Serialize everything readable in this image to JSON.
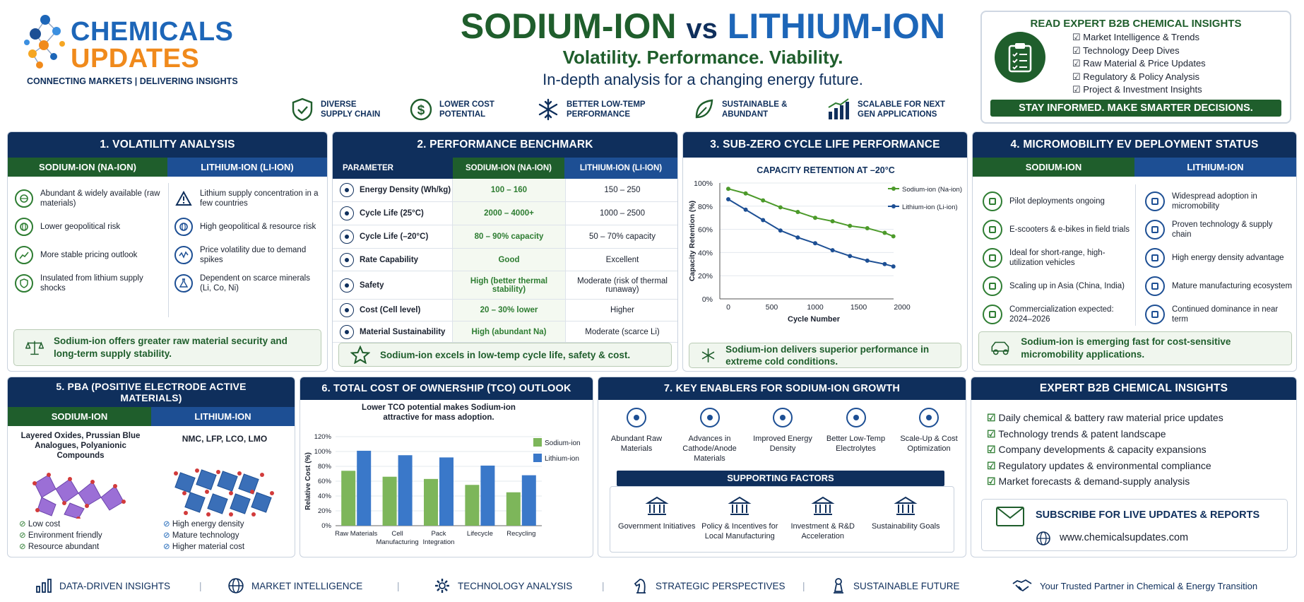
{
  "logo": {
    "line1": "CHEMICALS",
    "line2": "UPDATES",
    "tagline": "CONNECTING MARKETS | DELIVERING INSIGHTS"
  },
  "header": {
    "title_a": "SODIUM-ION",
    "title_vs": "vs",
    "title_b": "LITHIUM-ION",
    "subtitle": "Volatility. Performance. Viability.",
    "subtitle2": "In-depth analysis for a changing energy future.",
    "features": [
      {
        "icon": "shield-check-icon",
        "l1": "DIVERSE",
        "l2": "SUPPLY CHAIN"
      },
      {
        "icon": "dollar-icon",
        "l1": "LOWER COST",
        "l2": "POTENTIAL"
      },
      {
        "icon": "snowflake-icon",
        "l1": "BETTER LOW-TEMP",
        "l2": "PERFORMANCE"
      },
      {
        "icon": "leaf-icon",
        "l1": "SUSTAINABLE &",
        "l2": "ABUNDANT"
      },
      {
        "icon": "growth-chart-icon",
        "l1": "SCALABLE FOR NEXT",
        "l2": "GEN APPLICATIONS"
      }
    ]
  },
  "promo": {
    "title": "READ EXPERT B2B CHEMICAL INSIGHTS",
    "items": [
      "Market Intelligence & Trends",
      "Technology Deep Dives",
      "Raw Material & Price Updates",
      "Regulatory & Policy Analysis",
      "Project & Investment Insights"
    ],
    "banner": "STAY INFORMED. MAKE SMARTER DECISIONS."
  },
  "volatility": {
    "title": "1. VOLATILITY ANALYSIS",
    "col_a": "SODIUM-ION (NA-ION)",
    "col_b": "LITHIUM-ION (LI-ION)",
    "a": [
      {
        "icon": "earth-icon",
        "text": "Abundant & widely available (raw materials)"
      },
      {
        "icon": "globe-icon",
        "text": "Lower geopolitical risk"
      },
      {
        "icon": "trend-icon",
        "text": "More stable pricing outlook"
      },
      {
        "icon": "shield-icon",
        "text": "Insulated from lithium supply shocks"
      }
    ],
    "b": [
      {
        "icon": "warning-icon",
        "text": "Lithium supply concentration in a few countries"
      },
      {
        "icon": "globe-icon",
        "text": "High geopolitical & resource risk"
      },
      {
        "icon": "volatility-icon",
        "text": "Price volatility due to demand spikes"
      },
      {
        "icon": "flask-icon",
        "text": "Dependent on scarce minerals (Li, Co, Ni)"
      }
    ],
    "note": "Sodium-ion offers greater raw material security and long-term supply stability."
  },
  "performance": {
    "title": "2. PERFORMANCE BENCHMARK",
    "headers": [
      "PARAMETER",
      "SODIUM-ION (NA-ION)",
      "LITHIUM-ION (LI-ION)"
    ],
    "rows": [
      {
        "icon": "battery-icon",
        "p": "Energy Density (Wh/kg)",
        "na": "100 – 160",
        "li": "150 – 250"
      },
      {
        "icon": "cycle-icon",
        "p": "Cycle Life (25°C)",
        "na": "2000 – 4000+",
        "li": "1000 – 2500"
      },
      {
        "icon": "snowflake-icon",
        "p": "Cycle Life (–20°C)",
        "na": "80 – 90% capacity",
        "li": "50 – 70% capacity"
      },
      {
        "icon": "speed-icon",
        "p": "Rate Capability",
        "na": "Good",
        "li": "Excellent"
      },
      {
        "icon": "shield-icon",
        "p": "Safety",
        "na": "High (better thermal stability)",
        "li": "Moderate (risk of thermal runaway)"
      },
      {
        "icon": "dollar-icon",
        "p": "Cost (Cell level)",
        "na": "20 – 30% lower",
        "li": "Higher"
      },
      {
        "icon": "leaf-icon",
        "p": "Material Sustainability",
        "na": "High (abundant Na)",
        "li": "Moderate (scarce Li)"
      }
    ],
    "note": "Sodium-ion excels in low-temp cycle life, safety & cost."
  },
  "subzero": {
    "title": "3. SUB-ZERO CYCLE LIFE PERFORMANCE",
    "note": "Sodium-ion delivers superior performance in extreme cold conditions."
  },
  "micro": {
    "title": "4. MICROMOBILITY EV DEPLOYMENT STATUS",
    "col_a": "SODIUM-ION",
    "col_b": "LITHIUM-ION",
    "a": [
      {
        "icon": "people-icon",
        "text": "Pilot deployments ongoing"
      },
      {
        "icon": "scooter-icon",
        "text": "E-scooters & e-bikes in field trials"
      },
      {
        "icon": "route-icon",
        "text": "Ideal for short-range, high-utilization vehicles"
      },
      {
        "icon": "growth-icon",
        "text": "Scaling up in Asia (China, India)"
      },
      {
        "icon": "calendar-icon",
        "text": "Commercialization expected: 2024–2026"
      }
    ],
    "b": [
      {
        "icon": "shield-icon",
        "text": "Widespread adoption in micromobility"
      },
      {
        "icon": "bike-icon",
        "text": "Proven technology & supply chain"
      },
      {
        "icon": "battery-icon",
        "text": "High energy density advantage"
      },
      {
        "icon": "factory-icon",
        "text": "Mature manufacturing ecosystem"
      },
      {
        "icon": "trend-icon",
        "text": "Continued dominance in near term"
      }
    ],
    "note": "Sodium-ion is emerging fast for cost-sensitive micromobility applications."
  },
  "pba": {
    "title": "5. PBA (POSITIVE ELECTRODE ACTIVE MATERIALS)",
    "col_a": "SODIUM-ION",
    "col_b": "LITHIUM-ION",
    "a_text": "Layered Oxides, Prussian Blue Analogues, Polyanionic Compounds",
    "b_text": "NMC, LFP, LCO, LMO",
    "a_list": [
      "Low cost",
      "Environment friendly",
      "Resource abundant"
    ],
    "b_list": [
      "High energy density",
      "Mature technology",
      "Higher material cost"
    ]
  },
  "tco": {
    "title": "6. TOTAL COST OF OWNERSHIP (TCO) OUTLOOK"
  },
  "enablers": {
    "title": "7. KEY ENABLERS FOR SODIUM-ION GROWTH",
    "items": [
      {
        "icon": "network-icon",
        "text": "Abundant Raw Materials"
      },
      {
        "icon": "materials-icon",
        "text": "Advances in Cathode/Anode Materials"
      },
      {
        "icon": "leaf-icon",
        "text": "Improved Energy Density"
      },
      {
        "icon": "thermometer-icon",
        "text": "Better Low-Temp Electrolytes"
      },
      {
        "icon": "growth-chart-icon",
        "text": "Scale-Up & Cost Optimization"
      }
    ],
    "sub_title": "SUPPORTING FACTORS",
    "factors": [
      {
        "icon": "government-icon",
        "text": "Government Initiatives"
      },
      {
        "icon": "factory-icon",
        "text": "Policy & Incentives for Local Manufacturing"
      },
      {
        "icon": "investment-icon",
        "text": "Investment & R&D Acceleration"
      },
      {
        "icon": "sustainability-icon",
        "text": "Sustainability Goals"
      }
    ]
  },
  "expert": {
    "title": "EXPERT B2B CHEMICAL INSIGHTS",
    "items": [
      "Daily chemical & battery raw material price updates",
      "Technology trends & patent landscape",
      "Company developments & capacity expansions",
      "Regulatory updates & environmental compliance",
      "Market forecasts & demand-supply analysis"
    ],
    "subscribe": "SUBSCRIBE FOR LIVE UPDATES & REPORTS",
    "url": "www.chemicalsupdates.com"
  },
  "footer": {
    "items": [
      {
        "icon": "bar-chart-icon",
        "text": "DATA-DRIVEN INSIGHTS"
      },
      {
        "icon": "globe-icon",
        "text": "MARKET INTELLIGENCE"
      },
      {
        "icon": "gear-icon",
        "text": "TECHNOLOGY ANALYSIS"
      },
      {
        "icon": "chess-knight-icon",
        "text": "STRATEGIC PERSPECTIVES"
      },
      {
        "icon": "pawn-icon",
        "text": "SUSTAINABLE FUTURE"
      }
    ],
    "partner": "Your Trusted Partner in Chemical & Energy Transition"
  },
  "colors": {
    "navy": "#0f2f5c",
    "green": "#1f5e2c",
    "blue": "#1d4f94",
    "na_line": "#4c9a2a",
    "li_line": "#1d4f94",
    "na_bar": "#7db65a",
    "li_bar": "#3a78c9"
  },
  "chart_data": [
    {
      "type": "line",
      "title": "CAPACITY RETENTION AT –20°C",
      "xlabel": "Cycle Number",
      "ylabel": "Capacity Retention (%)",
      "xlim": [
        0,
        2000
      ],
      "ylim": [
        0,
        100
      ],
      "xticks": [
        0,
        500,
        1000,
        1500,
        2000
      ],
      "yticks": [
        "0%",
        "20%",
        "40%",
        "60%",
        "80%",
        "100%"
      ],
      "legend": "top-right",
      "grid": true,
      "series": [
        {
          "name": "Sodium-ion (Na-ion)",
          "x": [
            0,
            200,
            400,
            600,
            800,
            1000,
            1200,
            1400,
            1600,
            1800,
            1900
          ],
          "y": [
            95,
            91,
            85,
            79,
            75,
            70,
            67,
            63,
            61,
            57,
            54
          ]
        },
        {
          "name": "Lithium-ion (Li-ion)",
          "x": [
            0,
            200,
            400,
            600,
            800,
            1000,
            1200,
            1400,
            1600,
            1800,
            1900
          ],
          "y": [
            86,
            77,
            68,
            59,
            53,
            48,
            42,
            37,
            33,
            30,
            28
          ]
        }
      ]
    },
    {
      "type": "bar",
      "title": "Lower TCO potential makes Sodium-ion attractive for mass adoption.",
      "ylabel": "Relative Cost (%)",
      "xlabel": "",
      "ylim": [
        0,
        120
      ],
      "yticks": [
        "0%",
        "20%",
        "40%",
        "60%",
        "80%",
        "100%",
        "120%"
      ],
      "legend": "right",
      "grid": true,
      "categories": [
        "Raw Materials",
        "Cell Manufacturing",
        "Pack Integration",
        "Lifecycle",
        "Recycling"
      ],
      "series": [
        {
          "name": "Sodium-ion",
          "values": [
            74,
            66,
            63,
            55,
            45
          ]
        },
        {
          "name": "Lithium-ion",
          "values": [
            101,
            95,
            92,
            81,
            68
          ]
        }
      ]
    }
  ]
}
